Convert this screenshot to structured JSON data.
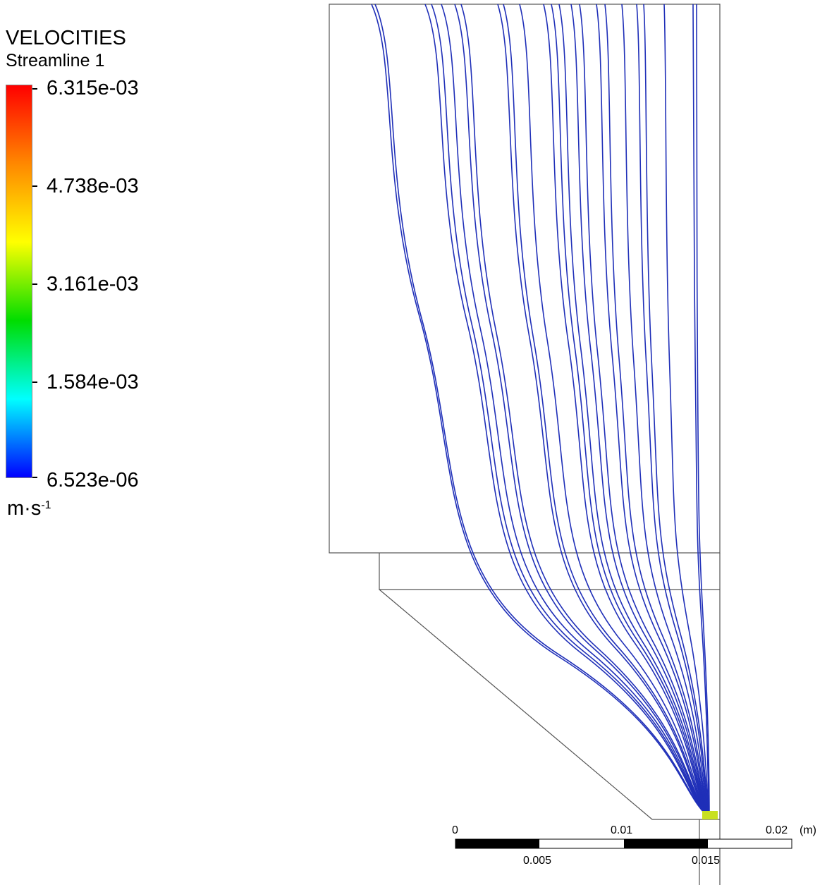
{
  "legend": {
    "title": "VELOCITIES",
    "subtitle": "Streamline 1",
    "ticks": [
      "6.315e-03",
      "4.738e-03",
      "3.161e-03",
      "1.584e-03",
      "6.523e-06"
    ],
    "unit_base": "m·s",
    "unit_exp": "-1",
    "gradient_colors": [
      "#ff0000",
      "#ff8800",
      "#ffff00",
      "#00dd00",
      "#00ffff",
      "#0000ff"
    ]
  },
  "scale": {
    "top_labels": [
      "0",
      "0.01",
      "0.02"
    ],
    "bottom_labels": [
      "0.005",
      "0.015"
    ],
    "unit": "(m)"
  },
  "colors": {
    "streamline": "#1f2fb8",
    "outlet": "#c8e020",
    "geometry": "#555555"
  }
}
